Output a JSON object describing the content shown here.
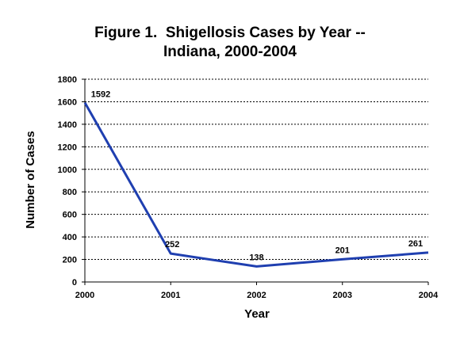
{
  "chart_data": {
    "type": "line",
    "title_lines": [
      "Figure 1.  Shigellosis Cases by Year --",
      "Indiana, 2000-2004"
    ],
    "xlabel": "Year",
    "ylabel": "Number of Cases",
    "categories": [
      "2000",
      "2001",
      "2002",
      "2003",
      "2004"
    ],
    "series": [
      {
        "values": [
          1592,
          252,
          138,
          201,
          261
        ]
      }
    ],
    "data_labels": [
      "1592",
      "252",
      "138",
      "201",
      "261"
    ],
    "ylim": [
      0,
      1800
    ],
    "yticks": [
      0,
      200,
      400,
      600,
      800,
      1000,
      1200,
      1400,
      1600,
      1800
    ],
    "ytick_labels": [
      "0",
      "200",
      "400",
      "600",
      "800",
      "1000",
      "1200",
      "1400",
      "1600",
      "1800"
    ],
    "grid": "horizontal dotted",
    "line_color": "#1f3fb0"
  }
}
